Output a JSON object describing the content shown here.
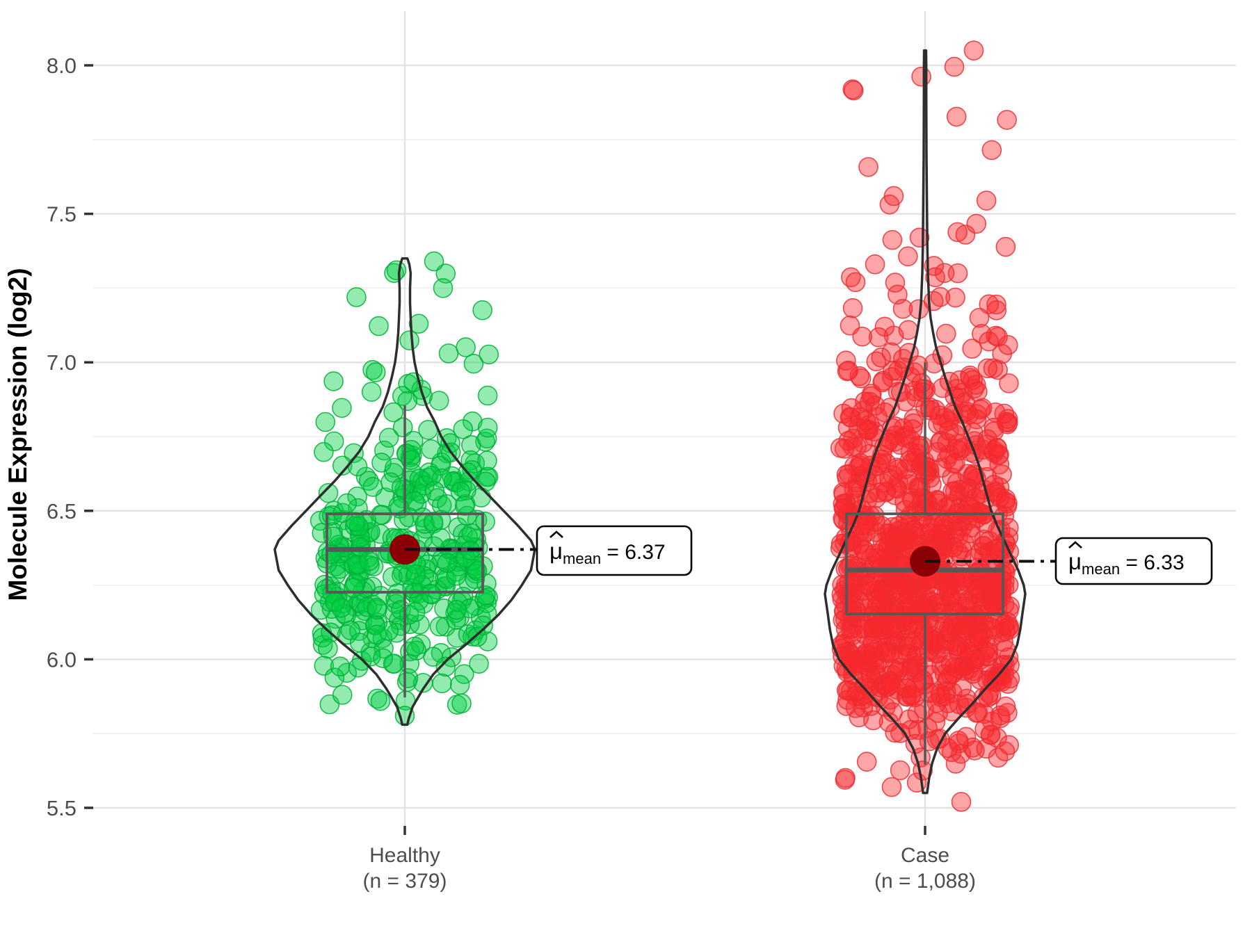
{
  "chart_data": {
    "type": "violin+jitter+box",
    "title": "",
    "ylabel": "Molecule Expression (log2)",
    "ylim": [
      5.44,
      8.18
    ],
    "grid": true,
    "ytick_labels": [
      "5.5",
      "6.0",
      "6.5",
      "7.0",
      "7.5",
      "8.0"
    ],
    "ytick_values": [
      5.5,
      6.0,
      6.5,
      7.0,
      7.5,
      8.0
    ],
    "ytick_minor_values": [
      5.75,
      6.25,
      6.75,
      7.25,
      7.75
    ],
    "categories": [
      "Healthy",
      "Case"
    ],
    "annotation": {
      "mu": "μ",
      "sub": "mean",
      "eq": " = "
    },
    "colors": {
      "grid_major": "#E3E3E3",
      "grid_minor": "#EFEFEF",
      "axis_text": "#4D4D4D",
      "axis_title": "#000000",
      "tick_mark": "#333333",
      "box_stroke": "#575757",
      "violin_stroke": "#2E2E2E",
      "mean_dot": "#8B0005",
      "annotation_line": "#111111",
      "annotation_box_border": "#000000",
      "annotation_box_fill": "#FFFFFF",
      "healthy_fill": "rgba(0,208,66,0.42)",
      "healthy_stroke": "rgba(0,175,55,0.85)",
      "case_fill": "rgba(250,40,45,0.42)",
      "case_stroke": "rgba(235,45,50,0.85)"
    },
    "groups": [
      {
        "label": "Healthy",
        "sublabel": "(n = 379)",
        "n": 379,
        "mean": 6.37,
        "median": 6.37,
        "q1": 6.226,
        "q3": 6.49,
        "whisker_low": 5.872,
        "whisker_high": 6.855,
        "violin_min": 5.78,
        "violin_max": 7.35,
        "annotation_value": "6.37",
        "violin_profile": [
          [
            5.78,
            0.02
          ],
          [
            5.8,
            0.03
          ],
          [
            5.84,
            0.06
          ],
          [
            5.87,
            0.1
          ],
          [
            5.9,
            0.14
          ],
          [
            5.95,
            0.22
          ],
          [
            6.0,
            0.33
          ],
          [
            6.05,
            0.47
          ],
          [
            6.1,
            0.6
          ],
          [
            6.15,
            0.72
          ],
          [
            6.2,
            0.82
          ],
          [
            6.25,
            0.9
          ],
          [
            6.3,
            0.97
          ],
          [
            6.37,
            1.0
          ],
          [
            6.4,
            0.97
          ],
          [
            6.45,
            0.87
          ],
          [
            6.5,
            0.76
          ],
          [
            6.55,
            0.65
          ],
          [
            6.6,
            0.54
          ],
          [
            6.65,
            0.44
          ],
          [
            6.7,
            0.35
          ],
          [
            6.75,
            0.28
          ],
          [
            6.8,
            0.23
          ],
          [
            6.85,
            0.17
          ],
          [
            6.9,
            0.13
          ],
          [
            6.95,
            0.1
          ],
          [
            7.0,
            0.075
          ],
          [
            7.05,
            0.06
          ],
          [
            7.1,
            0.05
          ],
          [
            7.15,
            0.045
          ],
          [
            7.2,
            0.04
          ],
          [
            7.25,
            0.04
          ],
          [
            7.3,
            0.045
          ],
          [
            7.33,
            0.035
          ],
          [
            7.35,
            0.02
          ]
        ],
        "extra_points": [
          [
            42,
            7.34
          ],
          [
            55,
            7.25
          ],
          [
            -12,
            7.31
          ],
          [
            20,
            7.13
          ],
          [
            63,
            7.03
          ],
          [
            0,
            5.81
          ],
          [
            -35,
            5.86
          ]
        ]
      },
      {
        "label": "Case",
        "sublabel": "(n = 1,088)",
        "n": 1088,
        "mean": 6.33,
        "median": 6.301,
        "q1": 6.153,
        "q3": 6.49,
        "whisker_low": 5.645,
        "whisker_high": 7.0,
        "violin_min": 5.55,
        "violin_max": 8.05,
        "annotation_value": "6.33",
        "violin_profile": [
          [
            5.55,
            0.02
          ],
          [
            5.6,
            0.04
          ],
          [
            5.65,
            0.07
          ],
          [
            5.7,
            0.12
          ],
          [
            5.75,
            0.2
          ],
          [
            5.8,
            0.33
          ],
          [
            5.85,
            0.47
          ],
          [
            5.9,
            0.6
          ],
          [
            5.95,
            0.74
          ],
          [
            6.0,
            0.86
          ],
          [
            6.05,
            0.92
          ],
          [
            6.1,
            0.95
          ],
          [
            6.15,
            0.97
          ],
          [
            6.22,
            1.0
          ],
          [
            6.25,
            0.985
          ],
          [
            6.3,
            0.93
          ],
          [
            6.35,
            0.86
          ],
          [
            6.4,
            0.79
          ],
          [
            6.45,
            0.72
          ],
          [
            6.5,
            0.66
          ],
          [
            6.55,
            0.62
          ],
          [
            6.6,
            0.58
          ],
          [
            6.65,
            0.54
          ],
          [
            6.7,
            0.49
          ],
          [
            6.75,
            0.43
          ],
          [
            6.8,
            0.37
          ],
          [
            6.85,
            0.3
          ],
          [
            6.9,
            0.25
          ],
          [
            6.95,
            0.2
          ],
          [
            7.0,
            0.155
          ],
          [
            7.05,
            0.11
          ],
          [
            7.1,
            0.08
          ],
          [
            7.15,
            0.055
          ],
          [
            7.2,
            0.04
          ],
          [
            7.3,
            0.028
          ],
          [
            7.4,
            0.022
          ],
          [
            7.55,
            0.018
          ],
          [
            7.7,
            0.014
          ],
          [
            7.9,
            0.012
          ],
          [
            8.0,
            0.012
          ],
          [
            8.05,
            0.01
          ]
        ],
        "extra_points": [
          [
            70,
            8.05
          ],
          [
            -45,
            7.56
          ],
          [
            58,
            7.43
          ],
          [
            -8,
            7.42
          ],
          [
            -72,
            7.33
          ],
          [
            47,
            7.3
          ],
          [
            -100,
            7.27
          ],
          [
            22,
            7.22
          ],
          [
            -32,
            7.18
          ],
          [
            78,
            7.15
          ],
          [
            -58,
            7.12
          ],
          [
            98,
            6.98
          ],
          [
            -112,
            6.97
          ],
          [
            -48,
            5.57
          ],
          [
            52,
            5.52
          ]
        ]
      }
    ]
  }
}
